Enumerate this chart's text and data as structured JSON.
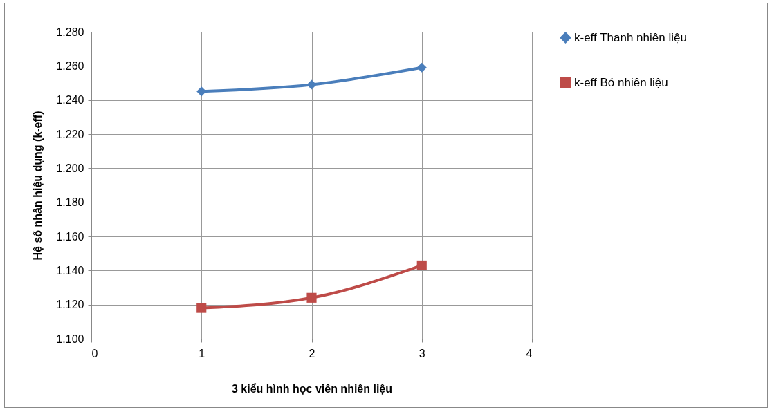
{
  "chart_data": {
    "type": "line",
    "xlabel": "3  kiểu hình học viên nhiên liệu",
    "ylabel": "Hệ số nhân hiệu dụng (k-eff)",
    "x": [
      1,
      2,
      3
    ],
    "series": [
      {
        "name": "k-eff Thanh nhiên liệu",
        "color": "#4a7ebb",
        "marker": "diamond",
        "values": [
          1.245,
          1.249,
          1.259
        ]
      },
      {
        "name": "k-eff Bó nhiên liệu",
        "color": "#be4b48",
        "marker": "square",
        "values": [
          1.118,
          1.124,
          1.143
        ]
      }
    ],
    "xlim": [
      0,
      4
    ],
    "xticks": [
      0,
      1,
      2,
      3,
      4
    ],
    "ylim": [
      1.1,
      1.28
    ],
    "yticks": [
      {
        "value": 1.1,
        "label": "1.100"
      },
      {
        "value": 1.12,
        "label": "1.120"
      },
      {
        "value": 1.14,
        "label": "1.140"
      },
      {
        "value": 1.16,
        "label": "1.160"
      },
      {
        "value": 1.18,
        "label": "1.180"
      },
      {
        "value": 1.2,
        "label": "1.200"
      },
      {
        "value": 1.22,
        "label": "1.220"
      },
      {
        "value": 1.24,
        "label": "1.240"
      },
      {
        "value": 1.26,
        "label": "1.260"
      },
      {
        "value": 1.28,
        "label": "1.280"
      }
    ],
    "grid": true,
    "legend": "right",
    "line_style": "solid"
  }
}
